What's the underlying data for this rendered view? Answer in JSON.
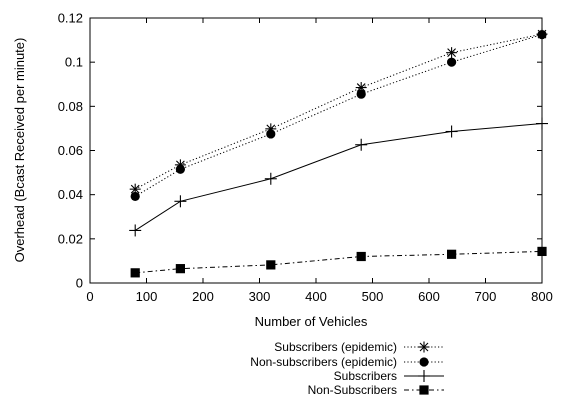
{
  "chart_data": {
    "type": "line",
    "title": "",
    "xlabel": "Number of Vehicles",
    "ylabel": "Overhead (Bcast Received per minute)",
    "xlim": [
      0,
      800
    ],
    "ylim": [
      0,
      0.12
    ],
    "xticks": [
      0,
      100,
      200,
      300,
      400,
      500,
      600,
      700,
      800
    ],
    "yticks": [
      0,
      0.02,
      0.04,
      0.06,
      0.08,
      0.1,
      0.12
    ],
    "xtick_labels": [
      "0",
      "100",
      "200",
      "300",
      "400",
      "500",
      "600",
      "700",
      "800"
    ],
    "ytick_labels": [
      "0",
      "0.02",
      "0.04",
      "0.06",
      "0.08",
      "0.1",
      "0.12"
    ],
    "grid": false,
    "legend_position": "below-right",
    "x": [
      80,
      160,
      320,
      480,
      640,
      800
    ],
    "series": [
      {
        "name": "Subscribers (epidemic)",
        "values": [
          0.0425,
          0.0535,
          0.0698,
          0.0885,
          0.1043,
          0.1127
        ],
        "marker": "star",
        "line_style": "dotted",
        "color": "#000000"
      },
      {
        "name": "Non-subscribers (epidemic)",
        "values": [
          0.0392,
          0.0515,
          0.0675,
          0.0855,
          0.1,
          0.1125
        ],
        "marker": "circle",
        "line_style": "dotted",
        "color": "#000000"
      },
      {
        "name": "Subscribers",
        "values": [
          0.0238,
          0.037,
          0.0472,
          0.0626,
          0.0686,
          0.0722
        ],
        "marker": "plus",
        "line_style": "solid",
        "color": "#000000"
      },
      {
        "name": "Non-Subscribers",
        "values": [
          0.0046,
          0.0065,
          0.0082,
          0.012,
          0.013,
          0.0143
        ],
        "marker": "square",
        "line_style": "dashdot",
        "color": "#000000"
      }
    ]
  }
}
